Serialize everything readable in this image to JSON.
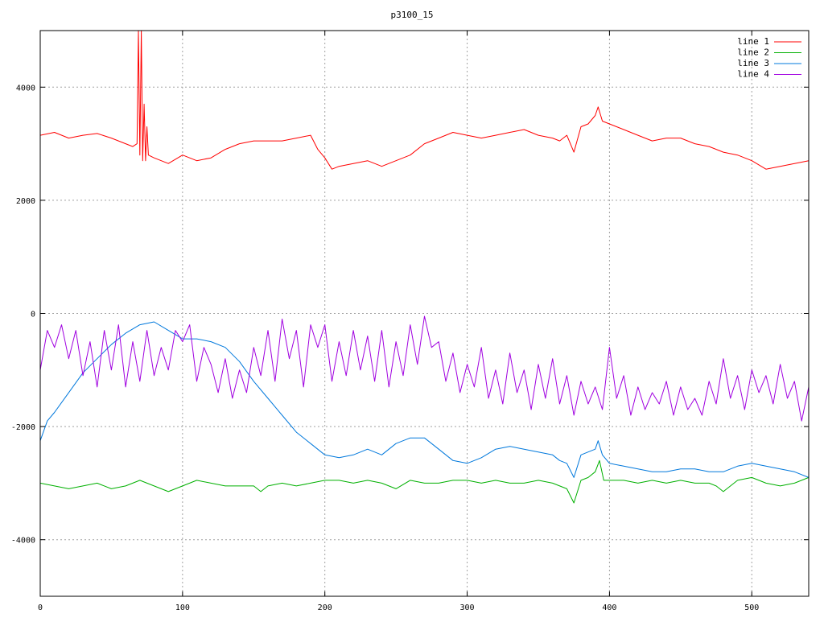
{
  "chart_data": {
    "type": "line",
    "title": "p3100_15",
    "xlim": [
      0,
      540
    ],
    "ylim": [
      -5000,
      5000
    ],
    "x_ticks": [
      0,
      100,
      200,
      300,
      400,
      500
    ],
    "y_ticks": [
      -4000,
      -2000,
      0,
      2000,
      4000
    ],
    "x_tick_labels": [
      "0",
      "100",
      "200",
      "300",
      "400",
      "500"
    ],
    "y_tick_labels": [
      "-4000",
      "-2000",
      "0",
      "2000",
      "4000"
    ],
    "grid": true,
    "legend_position": "top-right",
    "series": [
      {
        "name": "line 1",
        "color": "#ff0000",
        "x": [
          0,
          10,
          20,
          30,
          40,
          50,
          60,
          65,
          68,
          69,
          70,
          71,
          72,
          73,
          74,
          75,
          76,
          80,
          90,
          100,
          110,
          120,
          130,
          140,
          150,
          160,
          170,
          180,
          190,
          195,
          200,
          205,
          210,
          220,
          230,
          240,
          250,
          260,
          270,
          280,
          290,
          300,
          310,
          320,
          330,
          340,
          350,
          360,
          365,
          370,
          375,
          380,
          385,
          390,
          392,
          395,
          400,
          410,
          420,
          430,
          440,
          450,
          460,
          470,
          480,
          490,
          500,
          510,
          520,
          530,
          540
        ],
        "y": [
          3150,
          3200,
          3100,
          3150,
          3180,
          3100,
          3000,
          2950,
          3000,
          5000,
          2800,
          5000,
          2700,
          3700,
          2700,
          3300,
          2800,
          2750,
          2650,
          2800,
          2700,
          2750,
          2900,
          3000,
          3050,
          3050,
          3050,
          3100,
          3150,
          2900,
          2750,
          2550,
          2600,
          2650,
          2700,
          2600,
          2700,
          2800,
          3000,
          3100,
          3200,
          3150,
          3100,
          3150,
          3200,
          3250,
          3150,
          3100,
          3050,
          3150,
          2850,
          3300,
          3350,
          3500,
          3650,
          3400,
          3350,
          3250,
          3150,
          3050,
          3100,
          3100,
          3000,
          2950,
          2850,
          2800,
          2700,
          2550,
          2600,
          2650,
          2700
        ]
      },
      {
        "name": "line 2",
        "color": "#00b000",
        "x": [
          0,
          10,
          20,
          30,
          40,
          50,
          60,
          70,
          80,
          90,
          100,
          110,
          120,
          130,
          140,
          150,
          155,
          160,
          170,
          180,
          190,
          200,
          210,
          220,
          230,
          240,
          250,
          260,
          270,
          280,
          290,
          300,
          310,
          320,
          330,
          340,
          350,
          360,
          365,
          370,
          375,
          380,
          385,
          390,
          393,
          396,
          400,
          410,
          420,
          430,
          440,
          450,
          460,
          470,
          475,
          480,
          490,
          500,
          510,
          520,
          530,
          540
        ],
        "y": [
          -3000,
          -3050,
          -3100,
          -3050,
          -3000,
          -3100,
          -3050,
          -2950,
          -3050,
          -3150,
          -3050,
          -2950,
          -3000,
          -3050,
          -3050,
          -3050,
          -3150,
          -3050,
          -3000,
          -3050,
          -3000,
          -2950,
          -2950,
          -3000,
          -2950,
          -3000,
          -3100,
          -2950,
          -3000,
          -3000,
          -2950,
          -2950,
          -3000,
          -2950,
          -3000,
          -3000,
          -2950,
          -3000,
          -3050,
          -3100,
          -3350,
          -2950,
          -2900,
          -2800,
          -2600,
          -2950,
          -2950,
          -2950,
          -3000,
          -2950,
          -3000,
          -2950,
          -3000,
          -3000,
          -3050,
          -3150,
          -2950,
          -2900,
          -3000,
          -3050,
          -3000,
          -2900
        ]
      },
      {
        "name": "line 3",
        "color": "#0078dc",
        "x": [
          0,
          5,
          10,
          20,
          30,
          40,
          50,
          60,
          70,
          80,
          90,
          100,
          110,
          120,
          130,
          140,
          150,
          160,
          170,
          180,
          190,
          200,
          210,
          220,
          230,
          240,
          250,
          260,
          270,
          280,
          290,
          300,
          310,
          320,
          330,
          340,
          350,
          360,
          365,
          370,
          375,
          380,
          385,
          390,
          392,
          395,
          400,
          410,
          420,
          430,
          440,
          450,
          460,
          470,
          480,
          490,
          500,
          510,
          520,
          530,
          540
        ],
        "y": [
          -2250,
          -1900,
          -1750,
          -1400,
          -1050,
          -800,
          -550,
          -350,
          -200,
          -150,
          -300,
          -450,
          -450,
          -500,
          -600,
          -850,
          -1200,
          -1500,
          -1800,
          -2100,
          -2300,
          -2500,
          -2550,
          -2500,
          -2400,
          -2500,
          -2300,
          -2200,
          -2200,
          -2400,
          -2600,
          -2650,
          -2550,
          -2400,
          -2350,
          -2400,
          -2450,
          -2500,
          -2600,
          -2650,
          -2900,
          -2500,
          -2450,
          -2400,
          -2250,
          -2500,
          -2650,
          -2700,
          -2750,
          -2800,
          -2800,
          -2750,
          -2750,
          -2800,
          -2800,
          -2700,
          -2650,
          -2700,
          -2750,
          -2800,
          -2900
        ]
      },
      {
        "name": "line 4",
        "color": "#a000e0",
        "x": [
          0,
          5,
          10,
          15,
          20,
          25,
          30,
          35,
          40,
          45,
          50,
          55,
          60,
          65,
          70,
          75,
          80,
          85,
          90,
          95,
          100,
          105,
          110,
          115,
          120,
          125,
          130,
          135,
          140,
          145,
          150,
          155,
          160,
          165,
          170,
          175,
          180,
          185,
          190,
          195,
          200,
          205,
          210,
          215,
          220,
          225,
          230,
          235,
          240,
          245,
          250,
          255,
          260,
          265,
          270,
          275,
          280,
          285,
          290,
          295,
          300,
          305,
          310,
          315,
          320,
          325,
          330,
          335,
          340,
          345,
          350,
          355,
          360,
          365,
          370,
          375,
          380,
          385,
          390,
          395,
          400,
          405,
          410,
          415,
          420,
          425,
          430,
          435,
          440,
          445,
          450,
          455,
          460,
          465,
          470,
          475,
          480,
          485,
          490,
          495,
          500,
          505,
          510,
          515,
          520,
          525,
          530,
          535,
          540
        ],
        "y": [
          -1000,
          -300,
          -600,
          -200,
          -800,
          -300,
          -1100,
          -500,
          -1300,
          -300,
          -1000,
          -200,
          -1300,
          -500,
          -1200,
          -300,
          -1100,
          -600,
          -1000,
          -300,
          -500,
          -200,
          -1200,
          -600,
          -900,
          -1400,
          -800,
          -1500,
          -1000,
          -1400,
          -600,
          -1100,
          -300,
          -1200,
          -100,
          -800,
          -300,
          -1300,
          -200,
          -600,
          -200,
          -1200,
          -500,
          -1100,
          -300,
          -1000,
          -400,
          -1200,
          -300,
          -1300,
          -500,
          -1100,
          -200,
          -900,
          -50,
          -600,
          -500,
          -1200,
          -700,
          -1400,
          -900,
          -1300,
          -600,
          -1500,
          -1000,
          -1600,
          -700,
          -1400,
          -1000,
          -1700,
          -900,
          -1500,
          -800,
          -1600,
          -1100,
          -1800,
          -1200,
          -1600,
          -1300,
          -1700,
          -600,
          -1500,
          -1100,
          -1800,
          -1300,
          -1700,
          -1400,
          -1600,
          -1200,
          -1800,
          -1300,
          -1700,
          -1500,
          -1800,
          -1200,
          -1600,
          -800,
          -1500,
          -1100,
          -1700,
          -1000,
          -1400,
          -1100,
          -1600,
          -900,
          -1500,
          -1200,
          -1900,
          -1300
        ]
      }
    ]
  }
}
